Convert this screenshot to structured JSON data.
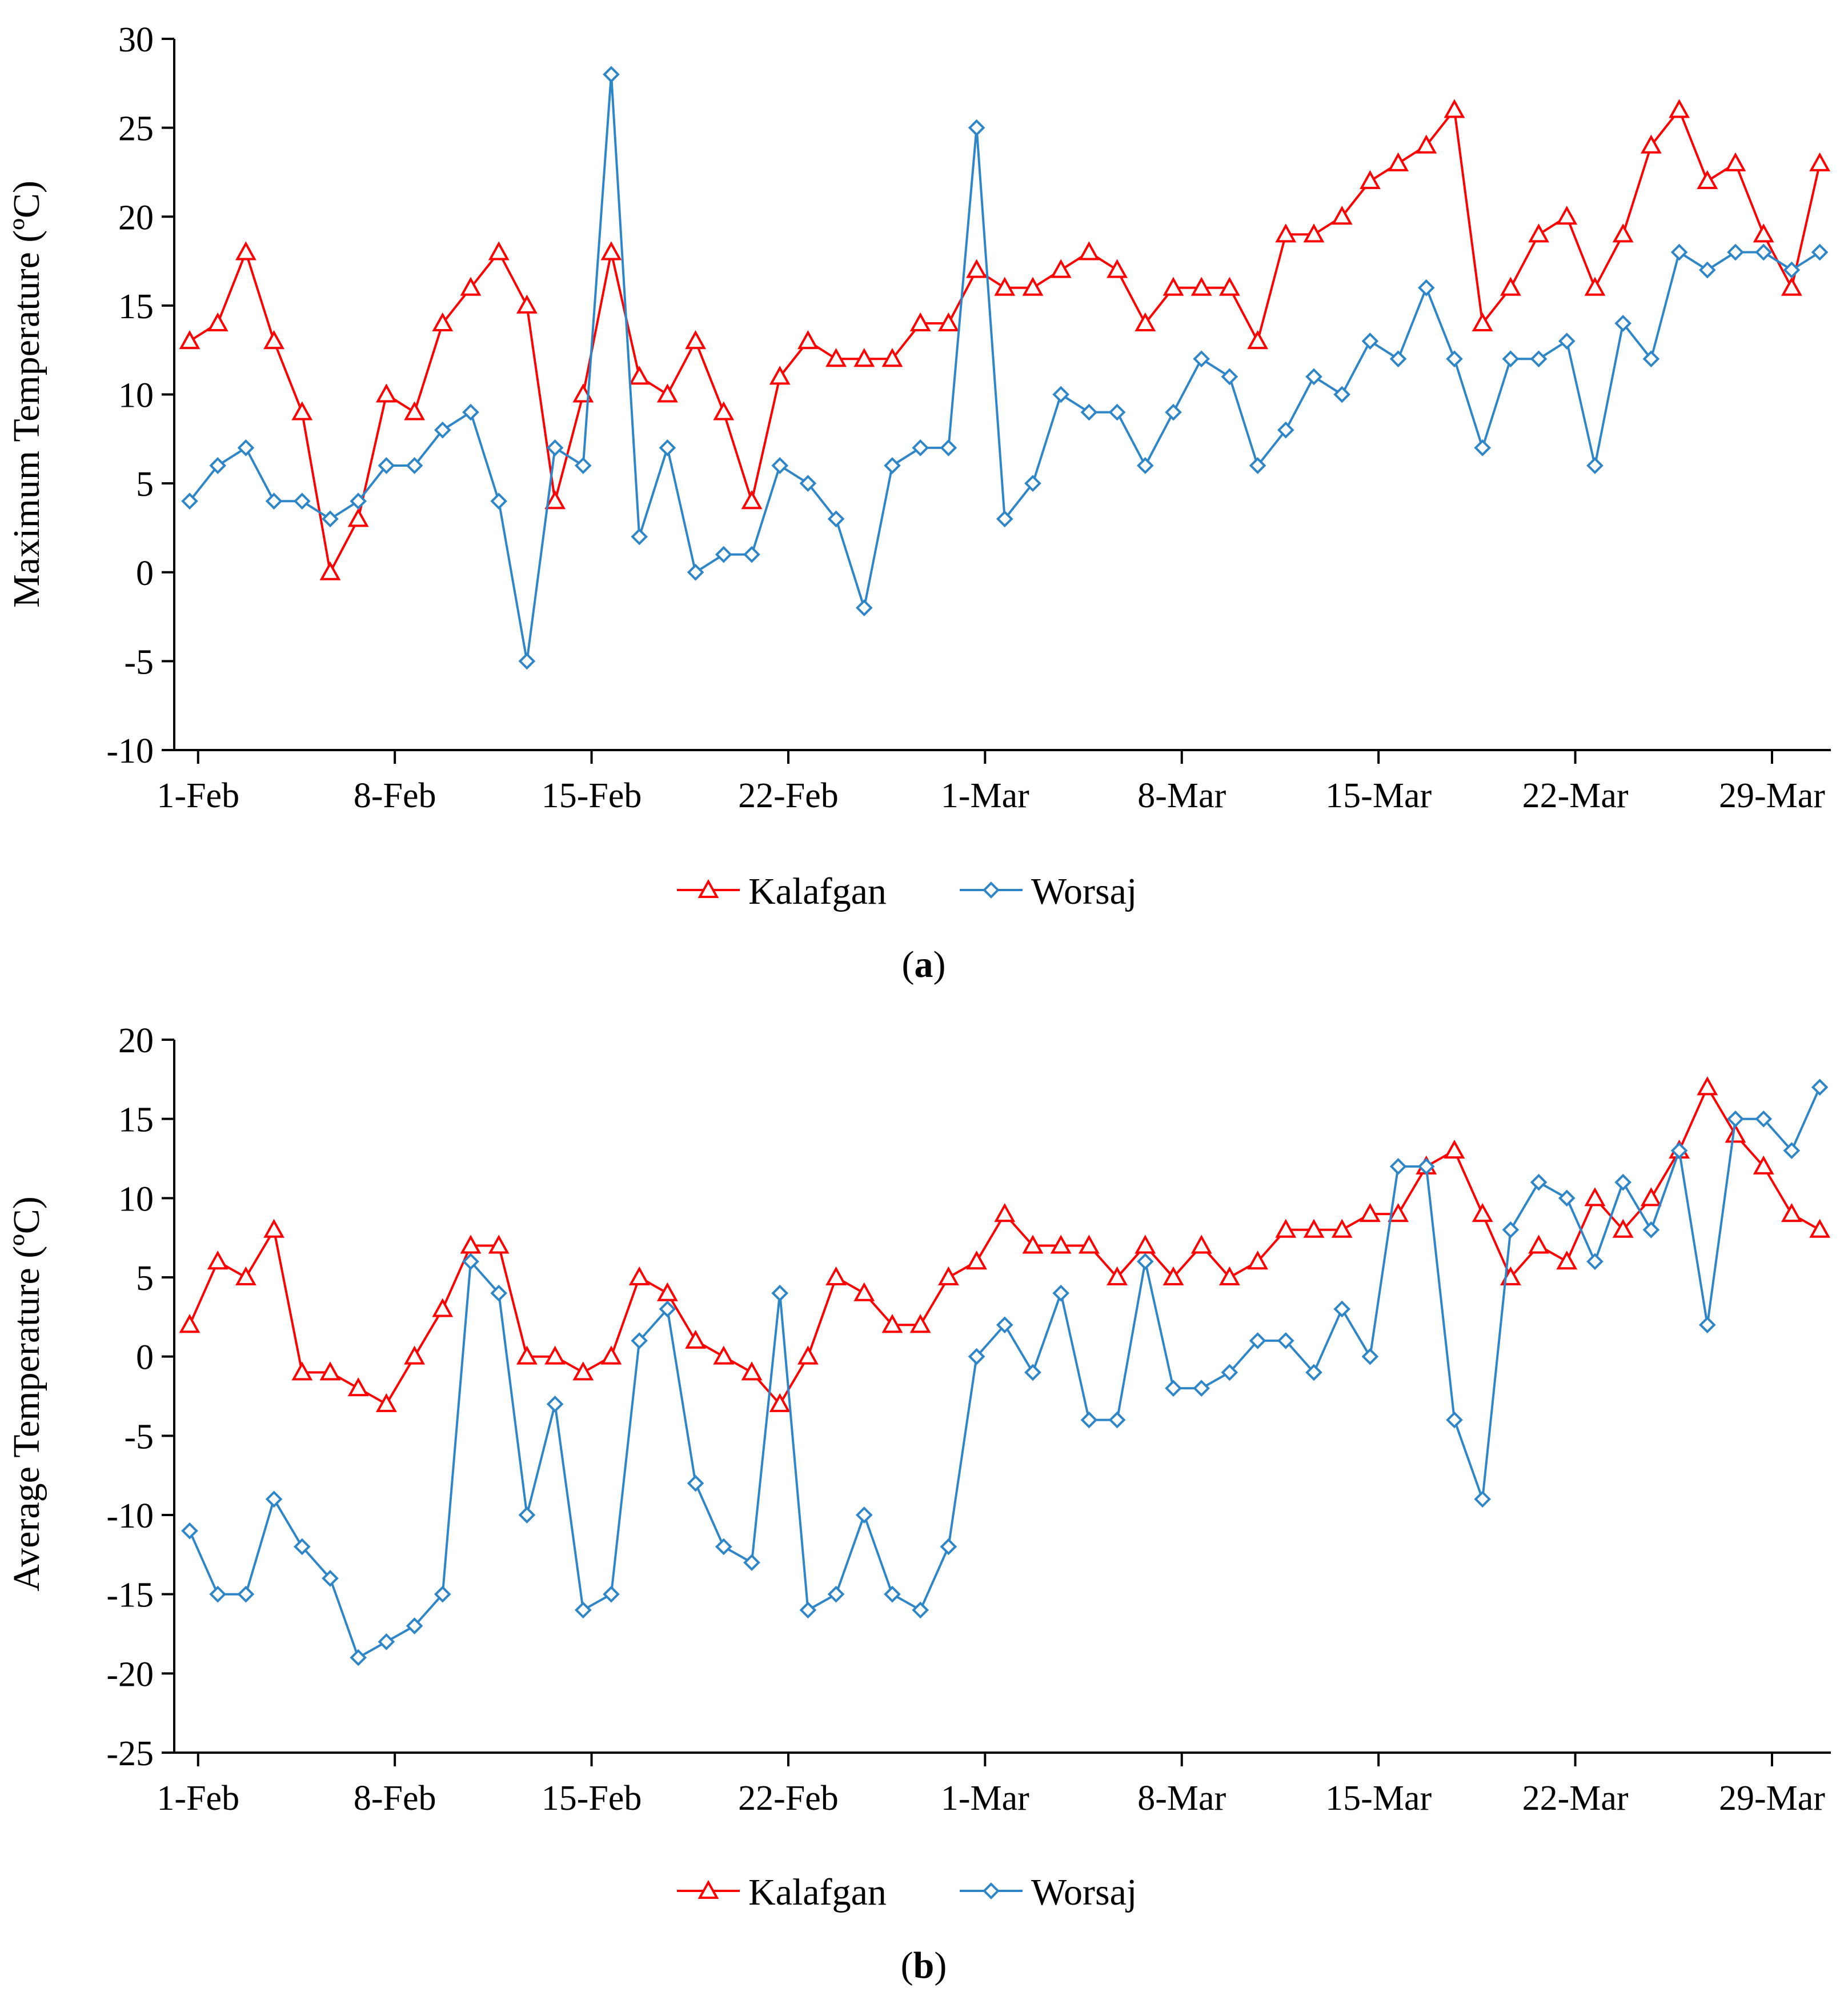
{
  "colors": {
    "kalafgan": "#ff0000",
    "worsaj": "#2e86c8",
    "axis": "#000000"
  },
  "chart_data": [
    {
      "type": "line",
      "panel": "a",
      "caption_letter": "a",
      "ylabel": "Maximum  Temperature (ºC)",
      "xlabel": "",
      "ylim": [
        -10,
        30
      ],
      "yticks": [
        "-10",
        "-5",
        "0",
        "5",
        "10",
        "15",
        "20",
        "25",
        "30"
      ],
      "xtick_labels": [
        "1-Feb",
        "8-Feb",
        "15-Feb",
        "22-Feb",
        "1-Mar",
        "8-Mar",
        "15-Mar",
        "22-Mar",
        "29-Mar"
      ],
      "legend": [
        "Kalafgan",
        "Worsaj"
      ],
      "legend_position": "bottom-center",
      "series": [
        {
          "name": "Kalafgan",
          "marker": "triangle",
          "values": [
            13,
            14,
            18,
            13,
            9,
            0,
            3,
            10,
            9,
            14,
            16,
            18,
            15,
            4,
            10,
            18,
            11,
            10,
            13,
            9,
            4,
            11,
            13,
            12,
            12,
            12,
            14,
            14,
            17,
            16,
            16,
            17,
            18,
            17,
            14,
            16,
            16,
            16,
            13,
            19,
            19,
            20,
            22,
            23,
            24,
            26,
            14,
            16,
            19,
            20,
            16,
            19,
            24,
            26,
            22,
            23,
            19,
            16,
            23
          ]
        },
        {
          "name": "Worsaj",
          "marker": "diamond",
          "values": [
            4,
            6,
            7,
            4,
            4,
            3,
            4,
            6,
            6,
            8,
            9,
            4,
            -5,
            7,
            6,
            28,
            2,
            7,
            0,
            1,
            1,
            6,
            5,
            3,
            -2,
            6,
            7,
            7,
            25,
            3,
            5,
            10,
            9,
            9,
            6,
            9,
            12,
            11,
            6,
            8,
            11,
            10,
            13,
            12,
            16,
            12,
            7,
            12,
            12,
            13,
            6,
            14,
            12,
            18,
            17,
            18,
            18,
            17,
            18
          ]
        }
      ]
    },
    {
      "type": "line",
      "panel": "b",
      "caption_letter": "b",
      "ylabel": "Average Temperature (ºC)",
      "xlabel": "",
      "ylim": [
        -25,
        20
      ],
      "yticks": [
        "-25",
        "-20",
        "-15",
        "-10",
        "-5",
        "0",
        "5",
        "10",
        "15",
        "20"
      ],
      "xtick_labels": [
        "1-Feb",
        "8-Feb",
        "15-Feb",
        "22-Feb",
        "1-Mar",
        "8-Mar",
        "15-Mar",
        "22-Mar",
        "29-Mar"
      ],
      "legend": [
        "Kalafgan",
        "Worsaj"
      ],
      "legend_position": "bottom-center",
      "series": [
        {
          "name": "Kalafgan",
          "marker": "triangle",
          "values": [
            2,
            6,
            5,
            8,
            -1,
            -1,
            -2,
            -3,
            0,
            3,
            7,
            7,
            0,
            0,
            -1,
            0,
            5,
            4,
            1,
            0,
            -1,
            -3,
            0,
            5,
            4,
            2,
            2,
            5,
            6,
            9,
            7,
            7,
            7,
            5,
            7,
            5,
            7,
            5,
            6,
            8,
            8,
            8,
            9,
            9,
            12,
            13,
            9,
            5,
            7,
            6,
            10,
            8,
            10,
            13,
            17,
            14,
            12,
            9,
            8
          ]
        },
        {
          "name": "Worsaj",
          "marker": "diamond",
          "values": [
            -11,
            -15,
            -15,
            -9,
            -12,
            -14,
            -19,
            -18,
            -17,
            -15,
            6,
            4,
            -10,
            -3,
            -16,
            -15,
            1,
            3,
            -8,
            -12,
            -13,
            4,
            -16,
            -15,
            -10,
            -15,
            -16,
            -12,
            0,
            2,
            -1,
            4,
            -4,
            -4,
            6,
            -2,
            -2,
            -1,
            1,
            1,
            -1,
            3,
            0,
            12,
            12,
            -4,
            -9,
            8,
            11,
            10,
            6,
            11,
            8,
            13,
            2,
            15,
            15,
            13,
            17
          ]
        }
      ]
    }
  ]
}
